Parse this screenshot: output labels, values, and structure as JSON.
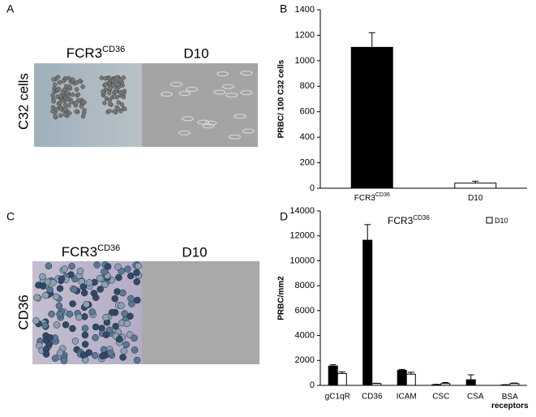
{
  "panels": [
    {
      "letter": "A",
      "left_title": "FCR3",
      "left_title_sup": "CD36",
      "right_title": "D10",
      "row_label": "C32 cells"
    },
    {
      "letter": "C",
      "left_title": "FCR3",
      "left_title_sup": "CD36",
      "right_title": "D10",
      "row_label": "CD36"
    }
  ],
  "chart_data": [
    {
      "type": "bar",
      "letter": "B",
      "y_label": "PRBC/ 100 C32 cells",
      "categories": [
        "FCR3",
        "D10"
      ],
      "category_superscripts": [
        "CD36",
        null
      ],
      "values": [
        1105,
        40
      ],
      "errors": [
        115,
        15
      ],
      "colors": [
        "#000000",
        "#ffffff"
      ],
      "ylim": [
        0,
        1400
      ],
      "yticks": [
        0,
        200,
        400,
        600,
        800,
        1000,
        1200,
        1400
      ]
    },
    {
      "type": "grouped-bar",
      "letter": "D",
      "y_label": "PRBC/mm2",
      "categories": [
        "gC1qR",
        "CD36",
        "ICAM",
        "CSC",
        "CSA",
        "BSA receptors"
      ],
      "series": [
        {
          "name": "FCR3",
          "name_superscript": "CD36",
          "color": "#000000",
          "values": [
            1550,
            11650,
            1200,
            50,
            450,
            30
          ],
          "errors": [
            100,
            1250,
            80,
            30,
            400,
            30
          ]
        },
        {
          "name": "D10",
          "color": "#ffffff",
          "values": [
            950,
            150,
            900,
            150,
            0,
            150
          ],
          "errors": [
            130,
            20,
            150,
            80,
            0,
            40
          ]
        }
      ],
      "ylim": [
        0,
        14000
      ],
      "yticks": [
        0,
        2000,
        4000,
        6000,
        8000,
        10000,
        12000,
        14000
      ]
    }
  ]
}
